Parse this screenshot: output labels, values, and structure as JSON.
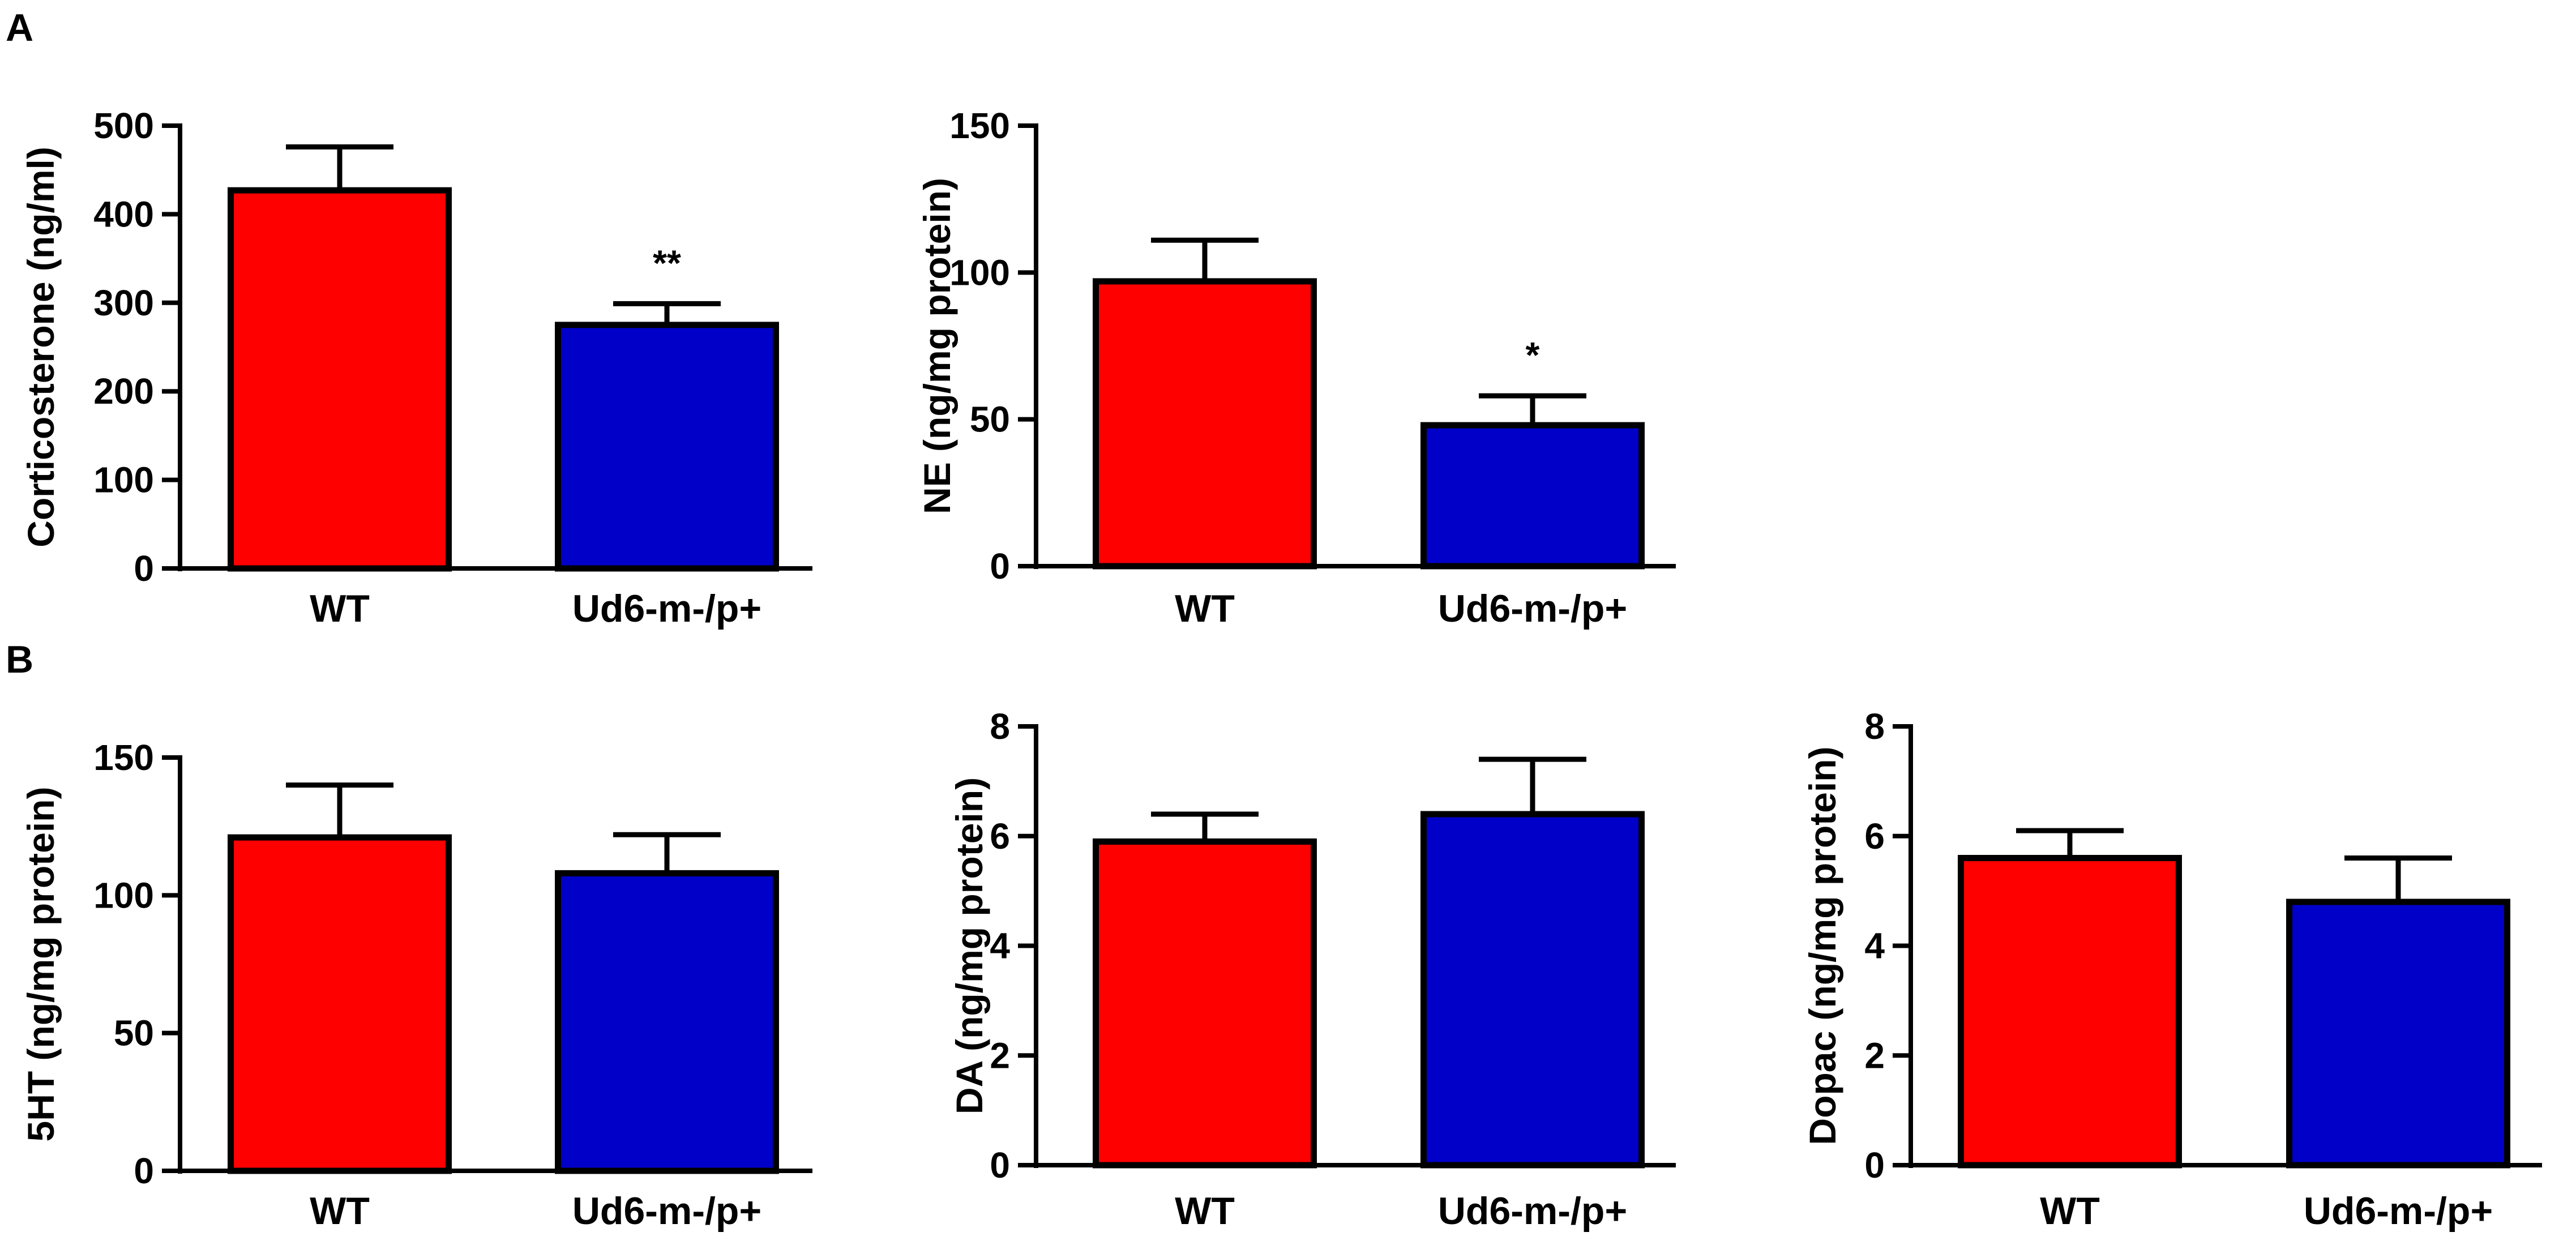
{
  "panels": [
    {
      "letter": "A"
    },
    {
      "letter": "B"
    }
  ],
  "colors": {
    "wt": "#ff0000",
    "mutant": "#0000c8",
    "axis": "#000000"
  },
  "chart_data": [
    {
      "type": "bar",
      "panel": "A",
      "categories": [
        "WT",
        "Ud6-m-/p+"
      ],
      "values": [
        427,
        275
      ],
      "errors": [
        49,
        24
      ],
      "significance": [
        "",
        "**"
      ],
      "ylabel": "Corticosterone (ng/ml)",
      "ylim": [
        0,
        500
      ],
      "yticks": [
        0,
        100,
        200,
        300,
        400,
        500
      ]
    },
    {
      "type": "bar",
      "panel": "A",
      "categories": [
        "WT",
        "Ud6-m-/p+"
      ],
      "values": [
        97,
        48
      ],
      "errors": [
        14,
        10
      ],
      "significance": [
        "",
        "*"
      ],
      "ylabel": "NE (ng/mg protein)",
      "ylim": [
        0,
        150
      ],
      "yticks": [
        0,
        50,
        100,
        150
      ]
    },
    {
      "type": "bar",
      "panel": "B",
      "categories": [
        "WT",
        "Ud6-m-/p+"
      ],
      "values": [
        121,
        108
      ],
      "errors": [
        19,
        14
      ],
      "significance": [
        "",
        ""
      ],
      "ylabel": "5HT (ng/mg protein)",
      "ylim": [
        0,
        150
      ],
      "yticks": [
        0,
        50,
        100,
        150
      ]
    },
    {
      "type": "bar",
      "panel": "B",
      "categories": [
        "WT",
        "Ud6-m-/p+"
      ],
      "values": [
        5.9,
        6.4
      ],
      "errors": [
        0.5,
        1.0
      ],
      "significance": [
        "",
        ""
      ],
      "ylabel": "DA (ng/mg protein)",
      "ylim": [
        0,
        8
      ],
      "yticks": [
        0,
        2,
        4,
        6,
        8
      ]
    },
    {
      "type": "bar",
      "panel": "B",
      "categories": [
        "WT",
        "Ud6-m-/p+"
      ],
      "values": [
        5.6,
        4.8
      ],
      "errors": [
        0.5,
        0.8
      ],
      "significance": [
        "",
        ""
      ],
      "ylabel": "Dopac (ng/mg protein)",
      "ylim": [
        0,
        8
      ],
      "yticks": [
        0,
        2,
        4,
        6,
        8
      ]
    }
  ]
}
